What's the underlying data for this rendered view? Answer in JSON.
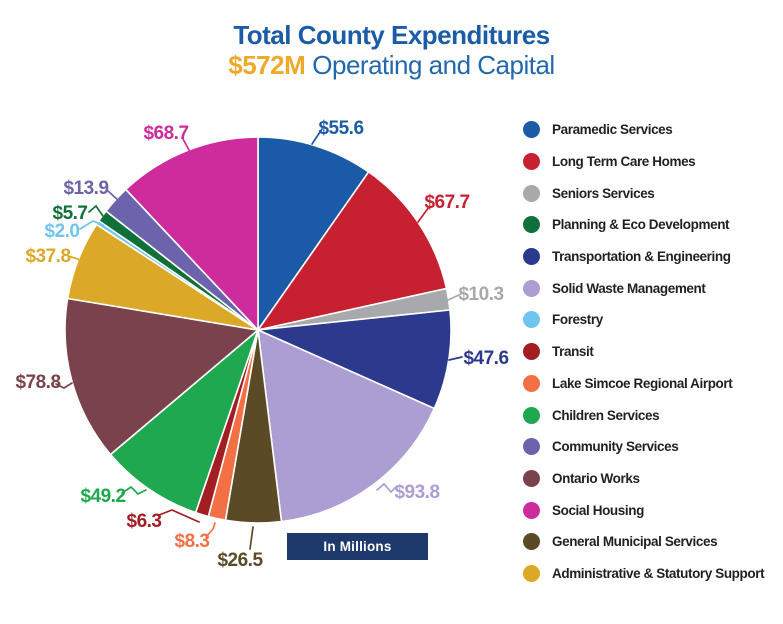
{
  "header": {
    "title": "Total County Expenditures",
    "amount": "$572M",
    "subtitle": "Operating and Capital",
    "title_color": "#1C5CA6",
    "amount_color": "#EFA929",
    "subtitle_color": "#2268AF"
  },
  "badge": {
    "label": "In Millions",
    "bg": "#1E3A6C",
    "fg": "#FFFFFF"
  },
  "legend": [
    {
      "label": "Paramedic Services",
      "color": "#1A5AA6"
    },
    {
      "label": "Long Term Care Homes",
      "color": "#C72031"
    },
    {
      "label": "Seniors Services",
      "color": "#A8A9AC"
    },
    {
      "label": "Planning & Eco Development",
      "color": "#107039"
    },
    {
      "label": "Transportation & Engineering",
      "color": "#2B3A8C"
    },
    {
      "label": "Solid Waste Management",
      "color": "#AC9ED3"
    },
    {
      "label": "Forestry",
      "color": "#6FC5EE"
    },
    {
      "label": "Transit",
      "color": "#A31E23"
    },
    {
      "label": "Lake Simcoe Regional Airport",
      "color": "#F37045"
    },
    {
      "label": "Children Services",
      "color": "#1FA850"
    },
    {
      "label": "Community Services",
      "color": "#6B63AC"
    },
    {
      "label": "Ontario Works",
      "color": "#7A434B"
    },
    {
      "label": "Social Housing",
      "color": "#CE2B9C"
    },
    {
      "label": "General Municipal Services",
      "color": "#5A4B26"
    },
    {
      "label": "Administrative & Statutory Support",
      "color": "#DCA827"
    }
  ],
  "chart_data": {
    "type": "pie",
    "title": "Total County Expenditures",
    "subtitle": "$572M Operating and Capital",
    "units": "In Millions",
    "total": 572.2,
    "start_angle_deg": 0,
    "direction": "clockwise",
    "legend_position": "right",
    "slices": [
      {
        "name": "Paramedic Services",
        "value": 55.6,
        "label": "$55.6",
        "color": "#1A5AA6"
      },
      {
        "name": "Long Term Care Homes",
        "value": 67.7,
        "label": "$67.7",
        "color": "#C72031"
      },
      {
        "name": "Seniors Services",
        "value": 10.3,
        "label": "$10.3",
        "color": "#A8A9AC"
      },
      {
        "name": "Transportation & Engineering",
        "value": 47.6,
        "label": "$47.6",
        "color": "#2B3A8C"
      },
      {
        "name": "Solid Waste Management",
        "value": 93.8,
        "label": "$93.8",
        "color": "#AC9ED3"
      },
      {
        "name": "General Municipal Services",
        "value": 26.5,
        "label": "$26.5",
        "color": "#5A4B26"
      },
      {
        "name": "Lake Simcoe Regional Airport",
        "value": 8.3,
        "label": "$8.3",
        "color": "#F37045"
      },
      {
        "name": "Transit",
        "value": 6.3,
        "label": "$6.3",
        "color": "#A31E23"
      },
      {
        "name": "Children Services",
        "value": 49.2,
        "label": "$49.2",
        "color": "#1FA850"
      },
      {
        "name": "Ontario Works",
        "value": 78.8,
        "label": "$78.8",
        "color": "#7A434B"
      },
      {
        "name": "Administrative & Statutory Support",
        "value": 37.8,
        "label": "$37.8",
        "color": "#DCA827"
      },
      {
        "name": "Forestry",
        "value": 2.0,
        "label": "$2.0",
        "color": "#6FC5EE"
      },
      {
        "name": "Planning & Eco Development",
        "value": 5.7,
        "label": "$5.7",
        "color": "#107039"
      },
      {
        "name": "Community Services",
        "value": 13.9,
        "label": "$13.9",
        "color": "#6B63AC"
      },
      {
        "name": "Social Housing",
        "value": 68.7,
        "label": "$68.7",
        "color": "#CE2B9C"
      }
    ]
  }
}
